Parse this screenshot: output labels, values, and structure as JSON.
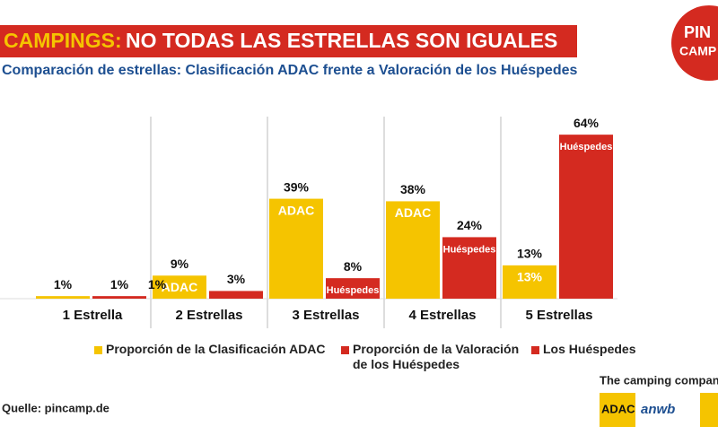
{
  "header": {
    "title_highlight": "CAMPINGS:",
    "title": "NO TODAS LAS ESTRELLAS SON IGUALES",
    "subtitle": "Comparación de estrellas: Clasificación ADAC frente a Valoración de los Huéspedes",
    "logo_top": "PIN",
    "logo_bottom": "CAMP"
  },
  "chart_data": {
    "type": "bar",
    "categories": [
      "1 Estrella",
      "2 Estrellas",
      "3 Estrellas",
      "4 Estrellas",
      "5 Estrellas"
    ],
    "ylim": [
      0,
      70
    ],
    "grid": false,
    "series": [
      {
        "name": "Proporción de la Clasificación ADAC",
        "color": "#f5c400",
        "values": [
          1,
          9,
          39,
          38,
          13
        ],
        "value_labels": [
          "1%",
          "9%",
          "39%",
          "38%",
          "13%"
        ],
        "inner_labels": [
          null,
          "ADAC",
          "ADAC",
          "ADAC",
          "13%"
        ]
      },
      {
        "name": "Proporción de la Valoración de los Huéspedes",
        "color": "#d42a20",
        "values": [
          1,
          3,
          8,
          24,
          64
        ],
        "value_labels": [
          "1%",
          "3%",
          "8%",
          "24%",
          "64%"
        ],
        "inner_labels": [
          null,
          null,
          "Huéspedes",
          "Huéspedes",
          "Huéspedes"
        ]
      }
    ],
    "annotations": [
      "1%"
    ],
    "legend_extra": {
      "name": "Los Huéspedes",
      "color": "#d42a20"
    }
  },
  "footer": {
    "source": "Quelle: pincamp.de",
    "company": "The camping company",
    "brand1": "ADAC",
    "brand2": "anwb"
  }
}
